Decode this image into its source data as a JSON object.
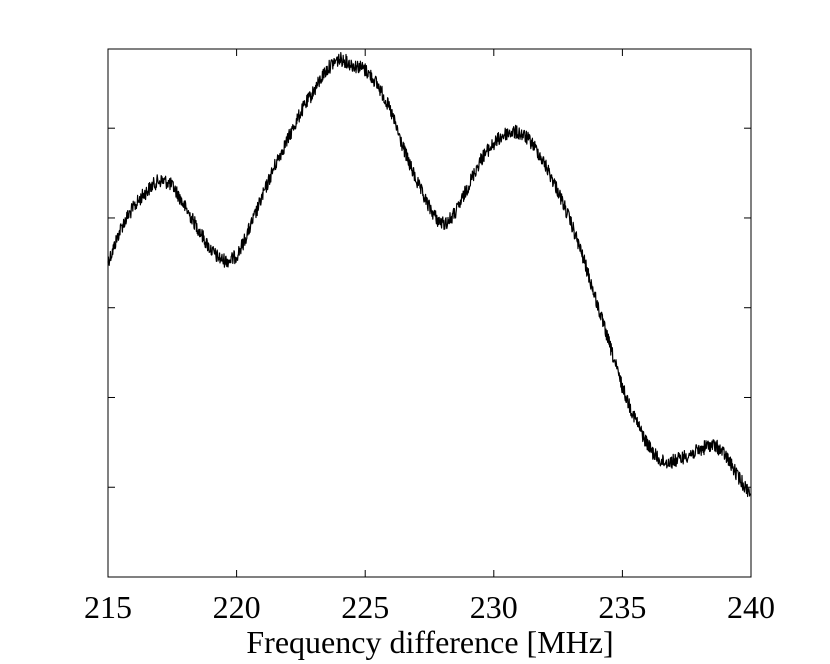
{
  "chart_data": {
    "type": "line",
    "title": "",
    "xlabel": "Frequency difference [MHz]",
    "ylabel": "",
    "xlim": [
      215,
      240
    ],
    "ylim": [
      0,
      1
    ],
    "x_ticks": [
      215,
      220,
      225,
      230,
      235,
      240
    ],
    "y_ticks": [
      0.17,
      0.34,
      0.51,
      0.68,
      0.85
    ],
    "y_tick_labels_shown": false,
    "grid": false,
    "legend": "none",
    "line_color": "#000000",
    "series": [
      {
        "x": [
          215,
          215.5,
          216,
          216.5,
          217,
          217.5,
          218,
          218.5,
          219,
          219.5,
          220,
          220.5,
          221,
          221.5,
          222,
          222.5,
          223,
          223.5,
          224,
          224.5,
          225,
          225.5,
          226,
          226.5,
          227,
          227.5,
          228,
          228.5,
          229,
          229.5,
          230,
          230.5,
          231,
          231.5,
          232,
          232.5,
          233,
          233.5,
          234,
          234.5,
          235,
          235.5,
          236,
          236.5,
          237,
          237.5,
          238,
          238.5,
          239,
          239.5,
          240
        ],
        "y": [
          0.6,
          0.66,
          0.7,
          0.73,
          0.75,
          0.74,
          0.7,
          0.66,
          0.62,
          0.6,
          0.61,
          0.66,
          0.72,
          0.78,
          0.83,
          0.88,
          0.92,
          0.96,
          0.98,
          0.97,
          0.96,
          0.93,
          0.88,
          0.81,
          0.75,
          0.7,
          0.67,
          0.69,
          0.74,
          0.79,
          0.82,
          0.84,
          0.84,
          0.82,
          0.78,
          0.73,
          0.67,
          0.6,
          0.52,
          0.44,
          0.36,
          0.3,
          0.25,
          0.22,
          0.22,
          0.23,
          0.24,
          0.25,
          0.23,
          0.19,
          0.16
        ]
      }
    ]
  }
}
